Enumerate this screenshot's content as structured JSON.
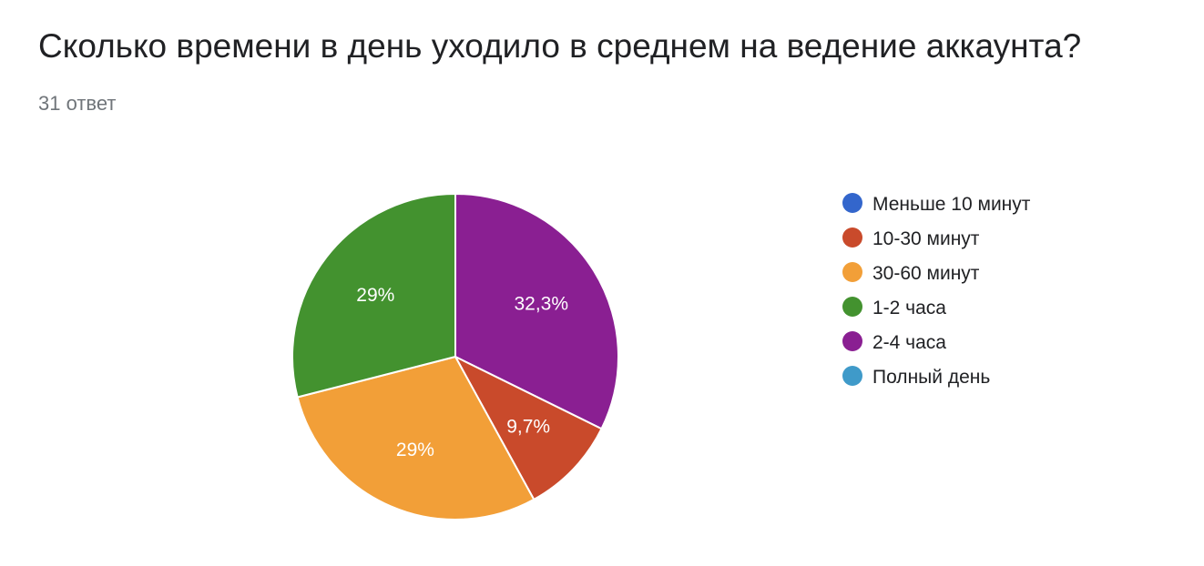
{
  "question": {
    "title": "Сколько времени в день уходило в среднем на ведение аккаунта?",
    "responses": "31 ответ"
  },
  "chart_data": {
    "type": "pie",
    "categories": [
      "Меньше 10 минут",
      "10-30 минут",
      "30-60 минут",
      "1-2 часа",
      "2-4 часа",
      "Полный день"
    ],
    "values": [
      0,
      9.7,
      29,
      29,
      32.3,
      0
    ],
    "labels": [
      "",
      "9,7%",
      "29%",
      "29%",
      "32,3%",
      ""
    ],
    "colors": [
      "#3366cc",
      "#c94a2b",
      "#f29f38",
      "#43922f",
      "#8a1f92",
      "#3f9ac9"
    ],
    "legend_position": "right"
  }
}
